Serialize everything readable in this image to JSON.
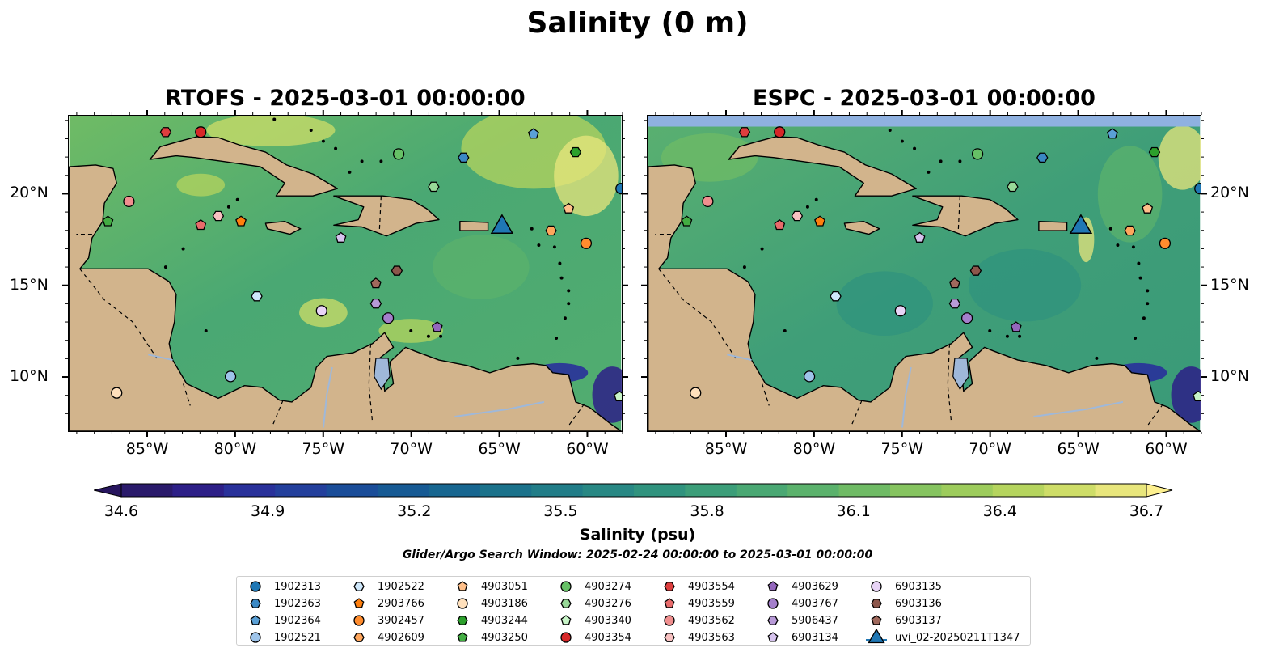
{
  "suptitle": "Salinity (0 m)",
  "panels": [
    {
      "title": "RTOFS - 2025-03-01 00:00:00",
      "model": "RTOFS"
    },
    {
      "title": "ESPC - 2025-03-01 00:00:00",
      "model": "ESPC"
    }
  ],
  "map_extent": {
    "lon": [
      -89.5,
      -58.0
    ],
    "lat": [
      7.0,
      24.3
    ]
  },
  "lon_ticks": [
    {
      "lon": -85,
      "label": "85°W"
    },
    {
      "lon": -80,
      "label": "80°W"
    },
    {
      "lon": -75,
      "label": "75°W"
    },
    {
      "lon": -70,
      "label": "70°W"
    },
    {
      "lon": -65,
      "label": "65°W"
    },
    {
      "lon": -60,
      "label": "60°W"
    }
  ],
  "lat_ticks": [
    {
      "lat": 10,
      "label": "10°N"
    },
    {
      "lat": 15,
      "label": "15°N"
    },
    {
      "lat": 20,
      "label": "20°N"
    }
  ],
  "colorbar": {
    "label": "Salinity (psu)",
    "vmin": 34.6,
    "vmax": 36.7,
    "ticks": [
      "34.6",
      "34.9",
      "35.2",
      "35.5",
      "35.8",
      "36.1",
      "36.4",
      "36.7"
    ],
    "colors": [
      "#2a1a6b",
      "#2d1f87",
      "#29319a",
      "#233f9c",
      "#1a4d99",
      "#165a94",
      "#176690",
      "#1b728b",
      "#217d88",
      "#288884",
      "#30937e",
      "#3c9e79",
      "#4aa873",
      "#5bb26c",
      "#6fbb65",
      "#86c460",
      "#9dcc5c",
      "#b5d45e",
      "#cedd68",
      "#e8e67c"
    ],
    "over_color": "#fdf08f",
    "under_color": "#27155e"
  },
  "search_window": "Glider/Argo Search Window: 2025-02-24 00:00:00 to 2025-03-01 00:00:00",
  "colors": {
    "land": "#d2b48c",
    "ocean_mid": "#4aa873",
    "deep_pacific": "#2b1b6e",
    "lakes": "#9fb8d9",
    "espc_band": "#8fb1e0"
  },
  "floats": [
    {
      "id": "1902313",
      "marker": "circle",
      "color": "#1f77b4",
      "lon": -58.0,
      "lat": 20.3
    },
    {
      "id": "1902363",
      "marker": "hexagon",
      "color": "#3a88c4",
      "lon": -67.0,
      "lat": 22.0
    },
    {
      "id": "1902364",
      "marker": "pentagon",
      "color": "#5aa0d6",
      "lon": -63.0,
      "lat": 23.3
    },
    {
      "id": "1902521",
      "marker": "circle",
      "color": "#9ec4ea",
      "lon": -80.3,
      "lat": 10.0
    },
    {
      "id": "1902522",
      "marker": "hexagon",
      "color": "#cfe8fb",
      "lon": -78.8,
      "lat": 14.4
    },
    {
      "id": "2903766",
      "marker": "pentagon",
      "color": "#ff7f0e",
      "lon": -79.7,
      "lat": 18.5
    },
    {
      "id": "3902457",
      "marker": "circle",
      "color": "#ff8c2e",
      "lon": -60.0,
      "lat": 17.3
    },
    {
      "id": "4902609",
      "marker": "hexagon",
      "color": "#ffa65c",
      "lon": -62.0,
      "lat": 18.0
    },
    {
      "id": "4903051",
      "marker": "pentagon",
      "color": "#ffc08a",
      "lon": -61.0,
      "lat": 19.2
    },
    {
      "id": "4903186",
      "marker": "circle",
      "color": "#ffe0bc",
      "lon": -86.8,
      "lat": 9.1
    },
    {
      "id": "4903244",
      "marker": "hexagon",
      "color": "#2ca02c",
      "lon": -60.6,
      "lat": 22.3
    },
    {
      "id": "4903250",
      "marker": "pentagon",
      "color": "#43ad43",
      "lon": -87.3,
      "lat": 18.5
    },
    {
      "id": "4903274",
      "marker": "circle",
      "color": "#66c066",
      "lon": -70.7,
      "lat": 22.2
    },
    {
      "id": "4903276",
      "marker": "hexagon",
      "color": "#98d998",
      "lon": -68.7,
      "lat": 20.4
    },
    {
      "id": "4903340",
      "marker": "pentagon",
      "color": "#c8f5c8",
      "lon": -58.1,
      "lat": 8.9
    },
    {
      "id": "4903354",
      "marker": "circle",
      "color": "#d62728",
      "lon": -82.0,
      "lat": 23.4
    },
    {
      "id": "4903554",
      "marker": "hexagon",
      "color": "#dd3e3e",
      "lon": -84.0,
      "lat": 23.4
    },
    {
      "id": "4903559",
      "marker": "pentagon",
      "color": "#e86b6b",
      "lon": -82.0,
      "lat": 18.3
    },
    {
      "id": "4903562",
      "marker": "circle",
      "color": "#f08f8f",
      "lon": -86.1,
      "lat": 19.6
    },
    {
      "id": "4903563",
      "marker": "hexagon",
      "color": "#f7c1c1",
      "lon": -81.0,
      "lat": 18.8
    },
    {
      "id": "4903629",
      "marker": "pentagon",
      "color": "#9467bd",
      "lon": -68.5,
      "lat": 12.7
    },
    {
      "id": "4903767",
      "marker": "circle",
      "color": "#a47fcb",
      "lon": -71.3,
      "lat": 13.2
    },
    {
      "id": "5906437",
      "marker": "hexagon",
      "color": "#b89ad8",
      "lon": -72.0,
      "lat": 14.0
    },
    {
      "id": "6903134",
      "marker": "pentagon",
      "color": "#d6c3ee",
      "lon": -74.0,
      "lat": 17.6
    },
    {
      "id": "6903135",
      "marker": "circle",
      "color": "#e8d4f6",
      "lon": -75.1,
      "lat": 13.6
    },
    {
      "id": "6903136",
      "marker": "hexagon",
      "color": "#8c564b",
      "lon": -70.8,
      "lat": 15.8
    },
    {
      "id": "6903137",
      "marker": "pentagon",
      "color": "#a0695d",
      "lon": -72.0,
      "lat": 15.1
    }
  ],
  "glider": {
    "id": "uvi_02-20250211T1347",
    "marker": "triangle",
    "color": "#1f77b4",
    "lon": -64.8,
    "lat": 18.1
  }
}
